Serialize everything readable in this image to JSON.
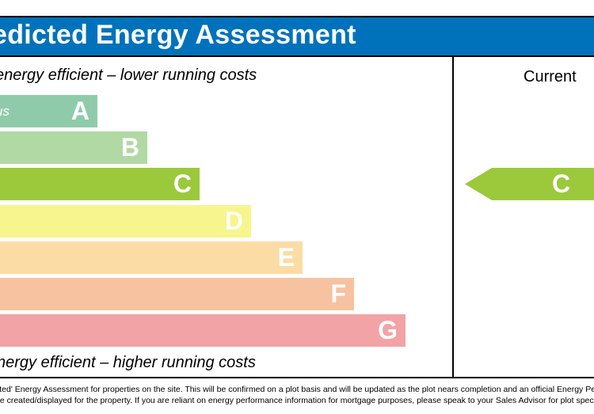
{
  "header": {
    "title": "edicted Energy Assessment"
  },
  "captions": {
    "top": "energy efficient – lower running costs",
    "bottom": "nergy efficient – higher running costs"
  },
  "columns": {
    "current": "Current"
  },
  "bands": [
    {
      "letter": "A",
      "sub": "us",
      "color": "#8fcbab"
    },
    {
      "letter": "B",
      "color": "#b0d9a4"
    },
    {
      "letter": "C",
      "color": "#9cc83c"
    },
    {
      "letter": "D",
      "color": "#f7f58d"
    },
    {
      "letter": "E",
      "color": "#fbdca4"
    },
    {
      "letter": "F",
      "color": "#f7c29f"
    },
    {
      "letter": "G",
      "color": "#f2a3a6"
    }
  ],
  "current_rating": {
    "letter": "C",
    "color": "#9cc83c"
  },
  "footnote": {
    "line1": "cted' Energy Assessment for properties on the site. This will be confirmed on a plot basis and will be updated as the plot nears completion and an official Energy Per",
    "line2": "be created/displayed for the property. If you are reliant on energy performance information for mortgage purposes, please speak to your Sales Advisor for plot specifi"
  }
}
